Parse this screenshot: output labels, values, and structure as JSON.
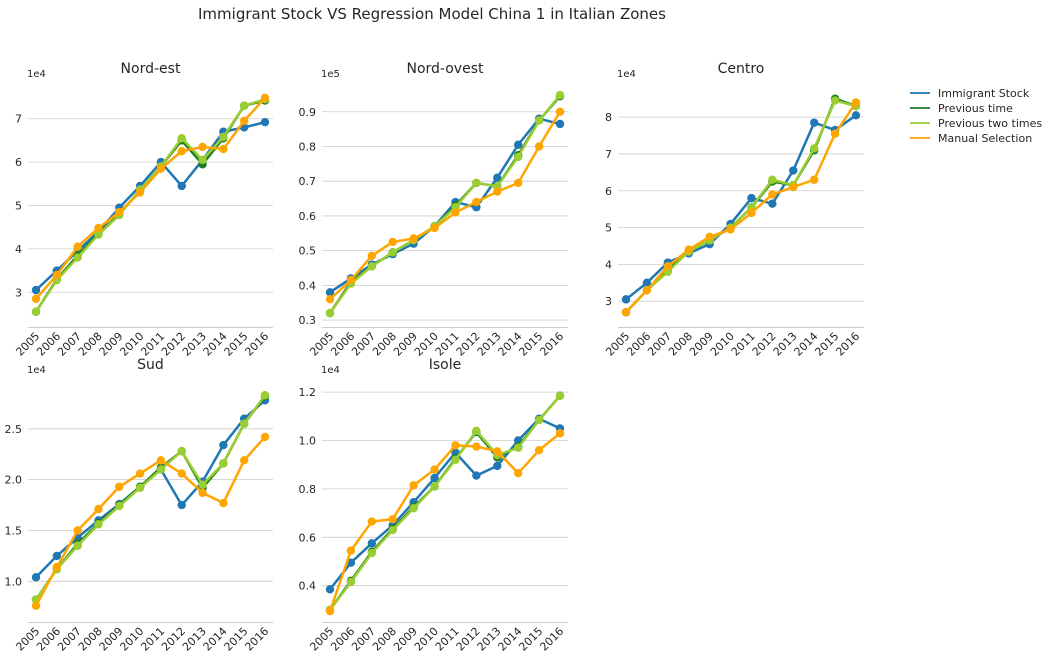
{
  "figure": {
    "title": "Immigrant Stock VS Regression Model China 1 in Italian Zones"
  },
  "legend": {
    "placement": "right-upper"
  },
  "series_styles": [
    {
      "name": "Immigrant Stock",
      "color": "#1f77b4",
      "marker": true
    },
    {
      "name": "Previous time",
      "color": "#1e7d22",
      "marker": true
    },
    {
      "name": "Previous two times",
      "color": "#9acd32",
      "marker": true
    },
    {
      "name": "Manual Selection",
      "color": "#ffa500",
      "marker": true
    }
  ],
  "chart_data": [
    {
      "type": "line",
      "title": "Nord-est",
      "exponent_label": "1e4",
      "categories": [
        "2005",
        "2006",
        "2007",
        "2008",
        "2009",
        "2010",
        "2011",
        "2012",
        "2013",
        "2014",
        "2015",
        "2016"
      ],
      "ylim": [
        2.2,
        7.8
      ],
      "yticks": [
        3,
        4,
        5,
        6,
        7
      ],
      "ytick_labels": [
        "3",
        "4",
        "5",
        "6",
        "7"
      ],
      "grid": true,
      "series": [
        {
          "name": "Immigrant Stock",
          "values": [
            3.05,
            3.5,
            3.95,
            4.4,
            4.95,
            5.45,
            6.0,
            5.45,
            6.05,
            6.7,
            6.8,
            6.92
          ]
        },
        {
          "name": "Previous time",
          "values": [
            2.55,
            3.3,
            3.85,
            4.35,
            4.8,
            5.35,
            5.9,
            6.5,
            5.95,
            6.55,
            7.3,
            7.42
          ]
        },
        {
          "name": "Previous two times",
          "values": [
            2.55,
            3.28,
            3.8,
            4.33,
            4.78,
            5.37,
            5.9,
            6.55,
            6.05,
            6.58,
            7.3,
            7.45
          ]
        },
        {
          "name": "Manual Selection",
          "values": [
            2.85,
            3.4,
            4.05,
            4.48,
            4.85,
            5.3,
            5.85,
            6.25,
            6.35,
            6.3,
            6.95,
            7.48
          ]
        }
      ]
    },
    {
      "type": "line",
      "title": "Nord-ovest",
      "exponent_label": "1e5",
      "categories": [
        "2005",
        "2006",
        "2007",
        "2008",
        "2009",
        "2010",
        "2011",
        "2012",
        "2013",
        "2014",
        "2015",
        "2016"
      ],
      "ylim": [
        0.28,
        0.98
      ],
      "yticks": [
        0.3,
        0.4,
        0.5,
        0.6,
        0.7,
        0.8,
        0.9
      ],
      "ytick_labels": [
        "0.3",
        "0.4",
        "0.5",
        "0.6",
        "0.7",
        "0.8",
        "0.9"
      ],
      "grid": true,
      "series": [
        {
          "name": "Immigrant Stock",
          "values": [
            0.38,
            0.42,
            0.46,
            0.49,
            0.52,
            0.57,
            0.64,
            0.625,
            0.71,
            0.805,
            0.88,
            0.865
          ]
        },
        {
          "name": "Previous time",
          "values": [
            0.32,
            0.41,
            0.455,
            0.495,
            0.53,
            0.57,
            0.63,
            0.695,
            0.685,
            0.775,
            0.875,
            0.945
          ]
        },
        {
          "name": "Previous two times",
          "values": [
            0.32,
            0.405,
            0.455,
            0.495,
            0.53,
            0.57,
            0.625,
            0.695,
            0.685,
            0.77,
            0.875,
            0.948
          ]
        },
        {
          "name": "Manual Selection",
          "values": [
            0.36,
            0.415,
            0.485,
            0.525,
            0.535,
            0.565,
            0.61,
            0.64,
            0.67,
            0.695,
            0.8,
            0.9
          ]
        }
      ]
    },
    {
      "type": "line",
      "title": "Centro",
      "exponent_label": "1e4",
      "categories": [
        "2005",
        "2006",
        "2007",
        "2008",
        "2009",
        "2010",
        "2011",
        "2012",
        "2013",
        "2014",
        "2015",
        "2016"
      ],
      "ylim": [
        2.3,
        8.9
      ],
      "yticks": [
        3,
        4,
        5,
        6,
        7,
        8
      ],
      "ytick_labels": [
        "3",
        "4",
        "5",
        "6",
        "7",
        "8"
      ],
      "grid": true,
      "series": [
        {
          "name": "Immigrant Stock",
          "values": [
            3.05,
            3.5,
            4.05,
            4.3,
            4.55,
            5.1,
            5.8,
            5.65,
            6.55,
            7.85,
            7.65,
            8.05
          ]
        },
        {
          "name": "Previous time",
          "values": [
            2.7,
            3.3,
            3.85,
            4.35,
            4.65,
            5.0,
            5.55,
            6.25,
            6.15,
            7.1,
            8.5,
            8.3
          ]
        },
        {
          "name": "Previous two times",
          "values": [
            2.7,
            3.3,
            3.8,
            4.35,
            4.65,
            5.0,
            5.55,
            6.3,
            6.15,
            7.15,
            8.45,
            8.3
          ]
        },
        {
          "name": "Manual Selection",
          "values": [
            2.7,
            3.3,
            3.95,
            4.4,
            4.75,
            4.95,
            5.4,
            5.9,
            6.1,
            6.3,
            7.55,
            8.4
          ]
        }
      ]
    },
    {
      "type": "line",
      "title": "Sud",
      "exponent_label": "1e4",
      "categories": [
        "2005",
        "2006",
        "2007",
        "2008",
        "2009",
        "2010",
        "2011",
        "2012",
        "2013",
        "2014",
        "2015",
        "2016"
      ],
      "ylim": [
        0.6,
        2.98
      ],
      "yticks": [
        1.0,
        1.5,
        2.0,
        2.5
      ],
      "ytick_labels": [
        "1.0",
        "1.5",
        "2.0",
        "2.5"
      ],
      "grid": true,
      "series": [
        {
          "name": "Immigrant Stock",
          "values": [
            1.04,
            1.25,
            1.43,
            1.6,
            1.76,
            1.93,
            2.1,
            1.75,
            1.98,
            2.34,
            2.6,
            2.78
          ]
        },
        {
          "name": "Previous time",
          "values": [
            0.82,
            1.12,
            1.37,
            1.57,
            1.75,
            1.93,
            2.12,
            2.28,
            1.92,
            2.16,
            2.55,
            2.82
          ]
        },
        {
          "name": "Previous two times",
          "values": [
            0.82,
            1.12,
            1.35,
            1.56,
            1.74,
            1.92,
            2.1,
            2.28,
            1.95,
            2.16,
            2.55,
            2.83
          ]
        },
        {
          "name": "Manual Selection",
          "values": [
            0.76,
            1.14,
            1.5,
            1.71,
            1.93,
            2.06,
            2.19,
            2.06,
            1.87,
            1.77,
            2.19,
            2.42
          ]
        }
      ]
    },
    {
      "type": "line",
      "title": "Isole",
      "exponent_label": "1e4",
      "categories": [
        "2005",
        "2006",
        "2007",
        "2008",
        "2009",
        "2010",
        "2011",
        "2012",
        "2013",
        "2014",
        "2015",
        "2016"
      ],
      "ylim": [
        0.25,
        1.25
      ],
      "yticks": [
        0.4,
        0.6,
        0.8,
        1.0,
        1.2
      ],
      "ytick_labels": [
        "0.4",
        "0.6",
        "0.8",
        "1.0",
        "1.2"
      ],
      "grid": true,
      "series": [
        {
          "name": "Immigrant Stock",
          "values": [
            0.385,
            0.495,
            0.575,
            0.65,
            0.745,
            0.845,
            0.95,
            0.855,
            0.895,
            1.0,
            1.09,
            1.05
          ]
        },
        {
          "name": "Previous time",
          "values": [
            0.3,
            0.42,
            0.54,
            0.635,
            0.725,
            0.81,
            0.925,
            1.035,
            0.93,
            0.975,
            1.085,
            1.185
          ]
        },
        {
          "name": "Previous two times",
          "values": [
            0.3,
            0.415,
            0.535,
            0.63,
            0.72,
            0.81,
            0.92,
            1.04,
            0.94,
            0.97,
            1.085,
            1.185
          ]
        },
        {
          "name": "Manual Selection",
          "values": [
            0.295,
            0.545,
            0.665,
            0.675,
            0.815,
            0.88,
            0.98,
            0.975,
            0.955,
            0.865,
            0.96,
            1.03
          ]
        }
      ]
    }
  ]
}
